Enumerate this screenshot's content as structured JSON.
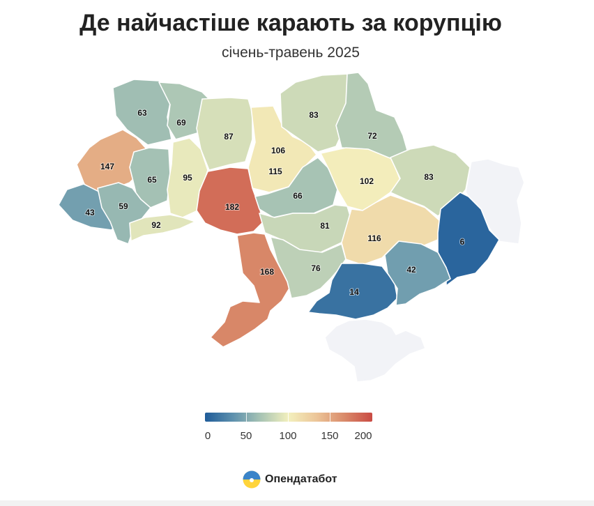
{
  "title": "Де найчастіше карають за корупцію",
  "subtitle": "січень-травень 2025",
  "legend": {
    "min": 0,
    "max": 200,
    "ticks": [
      "0",
      "50",
      "100",
      "150",
      "200"
    ],
    "colors": [
      "#1f5c99",
      "#5d90ad",
      "#a8c4b4",
      "#f3f0bd",
      "#ecc598",
      "#d98a6a",
      "#c94a43"
    ]
  },
  "regions": [
    {
      "id": "volyn",
      "value": 63,
      "label": "63"
    },
    {
      "id": "rivne",
      "value": 69,
      "label": "69"
    },
    {
      "id": "zhytomyr",
      "value": 87,
      "label": "87"
    },
    {
      "id": "kyiv-oblast",
      "value": 106,
      "label": "106"
    },
    {
      "id": "kyiv-city",
      "value": 115,
      "label": "115"
    },
    {
      "id": "chernihiv",
      "value": 83,
      "label": "83"
    },
    {
      "id": "sumy",
      "value": 72,
      "label": "72"
    },
    {
      "id": "lviv",
      "value": 147,
      "label": "147"
    },
    {
      "id": "ternopil",
      "value": 65,
      "label": "65"
    },
    {
      "id": "khmelnytskyi",
      "value": 95,
      "label": "95"
    },
    {
      "id": "zakarpattia",
      "value": 43,
      "label": "43"
    },
    {
      "id": "ivano-frankivsk",
      "value": 59,
      "label": "59"
    },
    {
      "id": "chernivtsi",
      "value": 92,
      "label": "92"
    },
    {
      "id": "vinnytsia",
      "value": 182,
      "label": "182"
    },
    {
      "id": "cherkasy",
      "value": 66,
      "label": "66"
    },
    {
      "id": "poltava",
      "value": 102,
      "label": "102"
    },
    {
      "id": "kharkiv",
      "value": 83,
      "label": "83"
    },
    {
      "id": "kirovohrad",
      "value": 81,
      "label": "81"
    },
    {
      "id": "dnipropetrovsk",
      "value": 116,
      "label": "116"
    },
    {
      "id": "donetsk",
      "value": 6,
      "label": "6"
    },
    {
      "id": "odesa",
      "value": 168,
      "label": "168"
    },
    {
      "id": "mykolaiv",
      "value": 76,
      "label": "76"
    },
    {
      "id": "kherson",
      "value": 14,
      "label": "14"
    },
    {
      "id": "zaporizhzhia",
      "value": 42,
      "label": "42"
    },
    {
      "id": "luhansk",
      "value": null,
      "label": ""
    },
    {
      "id": "crimea",
      "value": null,
      "label": ""
    }
  ],
  "no_data_color": "#f2f3f7",
  "brand": {
    "name": "Опендатабот",
    "logo_icon": "opendatabot-logo-icon"
  }
}
